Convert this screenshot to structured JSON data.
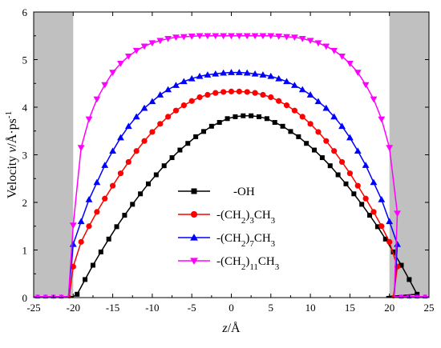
{
  "chart_data": {
    "type": "line",
    "xlabel": {
      "var": "z",
      "unit": "/Å"
    },
    "ylabel": {
      "prefix": "Velocity ",
      "var": "v",
      "unit": "/Å·ps",
      "sup": "-1"
    },
    "xlim": [
      -25,
      25
    ],
    "ylim": [
      0,
      6
    ],
    "xticks": [
      -25,
      -20,
      -15,
      -10,
      -5,
      0,
      5,
      10,
      15,
      20,
      25
    ],
    "yticks": [
      0,
      1,
      2,
      3,
      4,
      5,
      6
    ],
    "shaded_regions": [
      [
        -25,
        -20
      ],
      [
        20,
        25
      ]
    ],
    "legend_position": "center",
    "series": [
      {
        "name": "-OH",
        "label_parts": [
          {
            "t": "-OH"
          }
        ],
        "marker": "square",
        "color": "#000000",
        "x_start": -19.5,
        "x_step": 1.0,
        "values": [
          0.07,
          0.38,
          0.68,
          0.96,
          1.23,
          1.49,
          1.73,
          1.96,
          2.18,
          2.39,
          2.58,
          2.77,
          2.94,
          3.1,
          3.24,
          3.38,
          3.49,
          3.6,
          3.68,
          3.76,
          3.8,
          3.82,
          3.82,
          3.8,
          3.76,
          3.68,
          3.6,
          3.49,
          3.38,
          3.24,
          3.1,
          2.94,
          2.77,
          2.58,
          2.39,
          2.18,
          1.96,
          1.73,
          1.49,
          1.23,
          0.96,
          0.68,
          0.38,
          0.07
        ],
        "tail_left": [
          [
            -25,
            0.02
          ],
          [
            -20.5,
            0.02
          ],
          [
            -20,
            0.02
          ]
        ],
        "tail_right": [
          [
            19.6,
            0.02
          ],
          [
            20,
            0.02
          ],
          [
            25,
            0.02
          ]
        ]
      },
      {
        "name": "-(CH2)3CH3",
        "label_parts": [
          {
            "t": "-(CH"
          },
          {
            "t": "2",
            "sub": true
          },
          {
            "t": ")"
          },
          {
            "t": "3",
            "sub": true
          },
          {
            "t": "CH"
          },
          {
            "t": "3",
            "sub": true
          }
        ],
        "marker": "circle",
        "color": "#ff0000",
        "x_start": -20,
        "x_step": 1.0,
        "values": [
          0.65,
          1.17,
          1.5,
          1.8,
          2.08,
          2.35,
          2.61,
          2.85,
          3.08,
          3.29,
          3.48,
          3.65,
          3.8,
          3.93,
          4.04,
          4.13,
          4.21,
          4.26,
          4.3,
          4.32,
          4.33,
          4.33,
          4.32,
          4.3,
          4.26,
          4.21,
          4.13,
          4.04,
          3.93,
          3.8,
          3.65,
          3.48,
          3.29,
          3.08,
          2.85,
          2.61,
          2.35,
          2.08,
          1.8,
          1.5,
          1.17,
          0.65
        ],
        "tail_left": [
          [
            -25,
            0.02
          ],
          [
            -20.5,
            0.02
          ]
        ],
        "tail_right": [
          [
            20.5,
            0.02
          ],
          [
            25,
            0.02
          ]
        ]
      },
      {
        "name": "-(CH2)7CH3",
        "label_parts": [
          {
            "t": "-(CH"
          },
          {
            "t": "2",
            "sub": true
          },
          {
            "t": ")"
          },
          {
            "t": "7",
            "sub": true
          },
          {
            "t": "CH"
          },
          {
            "t": "3",
            "sub": true
          }
        ],
        "marker": "triangle-up",
        "color": "#0000ff",
        "x_start": -20,
        "x_step": 1.0,
        "values": [
          1.12,
          1.6,
          2.06,
          2.42,
          2.78,
          3.08,
          3.36,
          3.6,
          3.8,
          3.98,
          4.12,
          4.26,
          4.37,
          4.46,
          4.54,
          4.6,
          4.65,
          4.68,
          4.7,
          4.72,
          4.73,
          4.73,
          4.72,
          4.7,
          4.68,
          4.65,
          4.6,
          4.54,
          4.46,
          4.37,
          4.26,
          4.12,
          3.98,
          3.8,
          3.6,
          3.36,
          3.08,
          2.78,
          2.42,
          2.06,
          1.6,
          1.12
        ],
        "tail_left": [
          [
            -25,
            0.02
          ],
          [
            -20.6,
            0.02
          ]
        ],
        "tail_right": [
          [
            20.6,
            0.02
          ],
          [
            25,
            0.02
          ]
        ]
      },
      {
        "name": "-(CH2)11CH3",
        "label_parts": [
          {
            "t": "-(CH"
          },
          {
            "t": "2",
            "sub": true
          },
          {
            "t": ")"
          },
          {
            "t": "11",
            "sub": true
          },
          {
            "t": "CH"
          },
          {
            "t": "3",
            "sub": true
          }
        ],
        "marker": "triangle-down",
        "color": "#ff00ff",
        "x_start": -20,
        "x_step": 1.0,
        "values": [
          1.52,
          3.15,
          3.75,
          4.17,
          4.47,
          4.73,
          4.92,
          5.07,
          5.19,
          5.28,
          5.35,
          5.4,
          5.44,
          5.47,
          5.48,
          5.49,
          5.5,
          5.5,
          5.5,
          5.5,
          5.5,
          5.5,
          5.5,
          5.5,
          5.5,
          5.5,
          5.49,
          5.48,
          5.47,
          5.44,
          5.4,
          5.35,
          5.28,
          5.19,
          5.07,
          4.92,
          4.73,
          4.47,
          4.17,
          3.75,
          3.15,
          1.77
        ],
        "tail_left": [
          [
            -25,
            0.02
          ],
          [
            -20.6,
            0.02
          ]
        ],
        "tail_right": [
          [
            20.6,
            0.02
          ],
          [
            25,
            0.02
          ]
        ]
      }
    ]
  }
}
